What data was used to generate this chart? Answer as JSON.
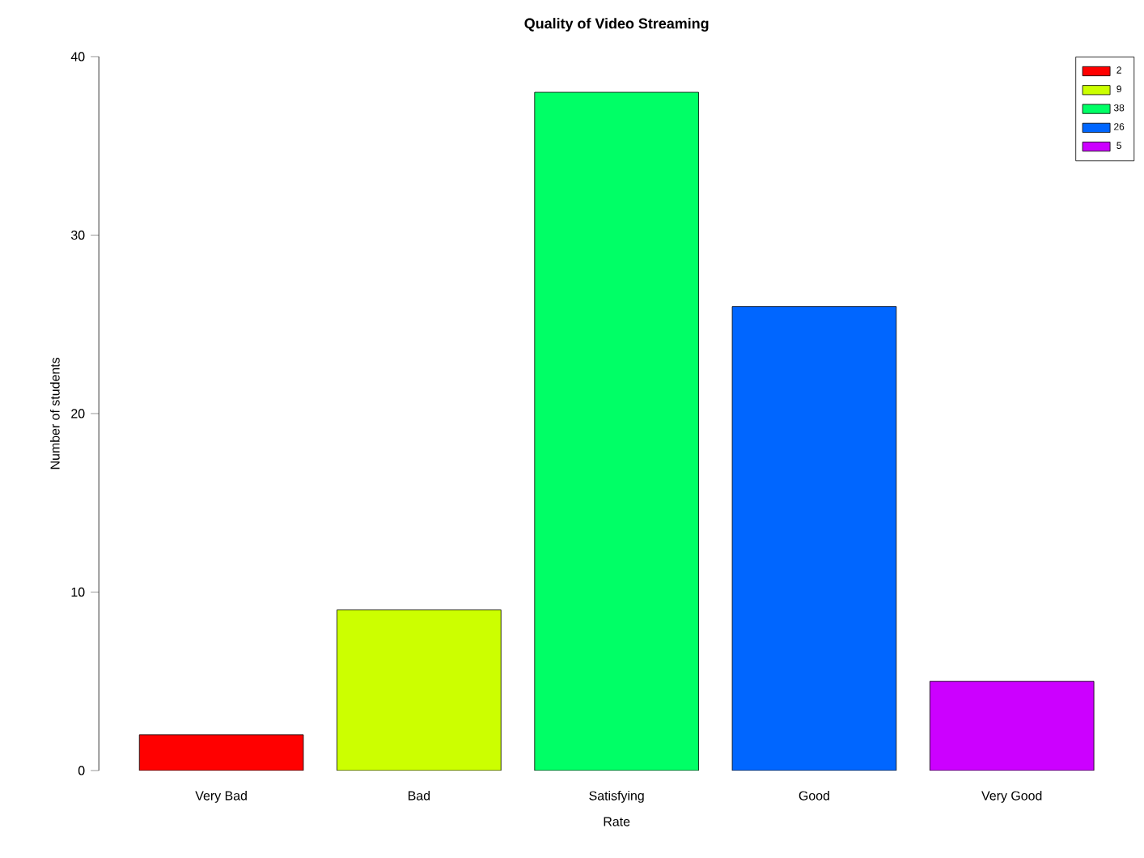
{
  "chart_data": {
    "type": "bar",
    "title": "Quality of Video Streaming",
    "xlabel": "Rate",
    "ylabel": "Number of students",
    "categories": [
      "Very Bad",
      "Bad",
      "Satisfying",
      "Good",
      "Very Good"
    ],
    "series": [
      {
        "name": "2",
        "color": "#ff0000",
        "values": [
          2,
          null,
          null,
          null,
          null
        ]
      },
      {
        "name": "9",
        "color": "#ccff00",
        "values": [
          null,
          9,
          null,
          null,
          null
        ]
      },
      {
        "name": "38",
        "color": "#00ff66",
        "values": [
          null,
          null,
          38,
          null,
          null
        ]
      },
      {
        "name": "26",
        "color": "#0066ff",
        "values": [
          null,
          null,
          null,
          26,
          null
        ]
      },
      {
        "name": "5",
        "color": "#cc00ff",
        "values": [
          null,
          null,
          null,
          null,
          5
        ]
      }
    ],
    "ylim": [
      0,
      40
    ],
    "yticks": [
      0,
      10,
      20,
      30,
      40
    ],
    "legend": "top right"
  }
}
